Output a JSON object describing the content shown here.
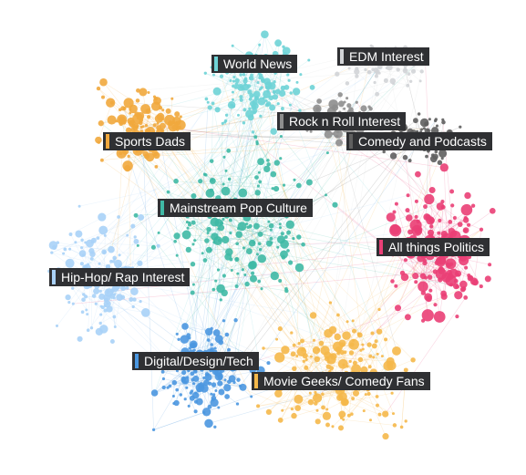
{
  "communities": [
    {
      "id": "world-news",
      "label": "World News",
      "color": "#6ed3d6"
    },
    {
      "id": "edm",
      "label": "EDM Interest",
      "color": "#d2d4d7"
    },
    {
      "id": "rock",
      "label": "Rock n Roll Interest",
      "color": "#8e8e8e"
    },
    {
      "id": "comedy-podcasts",
      "label": "Comedy and Podcasts",
      "color": "#5f5f5f"
    },
    {
      "id": "sports-dads",
      "label": "Sports Dads",
      "color": "#f1a83d"
    },
    {
      "id": "pop-culture",
      "label": "Mainstream Pop Culture",
      "color": "#3fb9a5"
    },
    {
      "id": "politics",
      "label": "All things Politics",
      "color": "#ea3f76"
    },
    {
      "id": "hiphop",
      "label": "Hip-Hop/ Rap Interest",
      "color": "#a9d1f7"
    },
    {
      "id": "tech",
      "label": "Digital/Design/Tech",
      "color": "#4b97e0"
    },
    {
      "id": "movies",
      "label": "Movie Geeks/ Comedy Fans",
      "color": "#f5b84a"
    }
  ]
}
